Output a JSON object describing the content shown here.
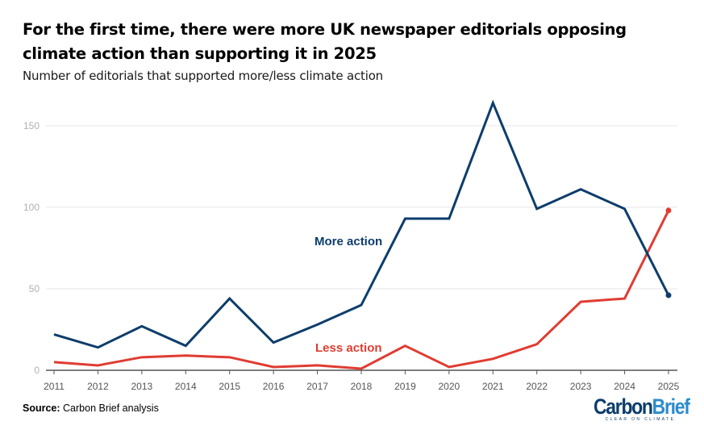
{
  "header": {
    "title": "For the first time, there were more UK newspaper editorials opposing climate action than supporting it in 2025",
    "subtitle": "Number of editorials that supported more/less climate action"
  },
  "footer": {
    "source_label": "Source:",
    "source_text": "Carbon Brief analysis",
    "logo_carbon": "Carbon",
    "logo_brief": "Brief",
    "logo_tagline": "CLEAR ON CLIMATE"
  },
  "colors": {
    "more_action": "#0d3d6b",
    "less_action": "#e03c31",
    "grid": "#e6e6e6",
    "axis": "#555555"
  },
  "chart_data": {
    "type": "line",
    "title": "For the first time, there were more UK newspaper editorials opposing climate action than supporting it in 2025",
    "subtitle": "Number of editorials that supported more/less climate action",
    "xlabel": "",
    "ylabel": "",
    "x": [
      "2011",
      "2012",
      "2013",
      "2014",
      "2015",
      "2016",
      "2017",
      "2018",
      "2019",
      "2020",
      "2021",
      "2022",
      "2023",
      "2024",
      "2025"
    ],
    "ylim": [
      0,
      165
    ],
    "yticks": [
      0,
      50,
      100,
      150
    ],
    "grid": true,
    "legend": "inline labels",
    "series": [
      {
        "name": "More action",
        "color": "#0d3d6b",
        "values": [
          22,
          14,
          27,
          15,
          44,
          17,
          28,
          40,
          93,
          93,
          164,
          99,
          111,
          99,
          46
        ],
        "label_anchor_year": "2018",
        "label_anchor_value": 79
      },
      {
        "name": "Less action",
        "color": "#e03c31",
        "values": [
          5,
          3,
          8,
          9,
          8,
          2,
          3,
          1,
          15,
          2,
          7,
          16,
          42,
          44,
          98
        ],
        "label_anchor_year": "2017",
        "label_anchor_value": 13
      }
    ]
  }
}
